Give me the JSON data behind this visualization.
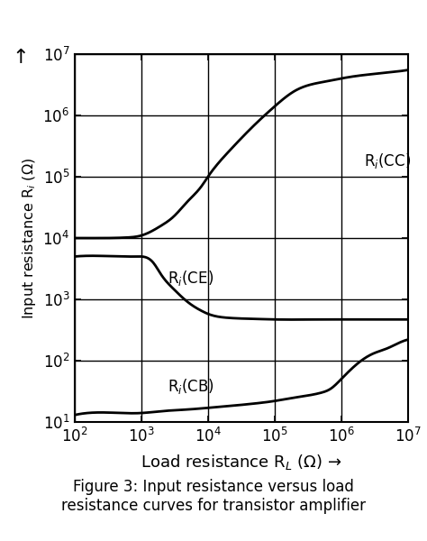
{
  "title": "Figure 3: Input resistance versus load\nresistance curves for transistor amplifier",
  "xlabel": "Load resistance R$_L$ (Ω) →",
  "ylabel": "Input resistance R$_i$ (Ω)",
  "xlim_log": [
    2,
    7
  ],
  "ylim_log": [
    1,
    7
  ],
  "background_color": "#ffffff",
  "curve_color": "#000000",
  "linewidth": 2.0,
  "CC_label": "R$_i$(CC)",
  "CE_label": "R$_i$(CE)",
  "CB_label": "R$_i$(CB)",
  "CC_x": [
    100,
    300,
    600,
    1000,
    2000,
    3000,
    5000,
    8000,
    10000,
    20000,
    50000,
    100000,
    200000,
    400000,
    700000,
    1000000,
    2000000,
    5000000,
    10000000
  ],
  "CC_y": [
    10000,
    10000,
    10200,
    11000,
    16000,
    22000,
    40000,
    70000,
    100000,
    250000,
    700000,
    1400000,
    2500000,
    3300000,
    3700000,
    4000000,
    4500000,
    5000000,
    5500000
  ],
  "CE_x": [
    100,
    500,
    800,
    1000,
    1500,
    2000,
    3000,
    5000,
    8000,
    10000,
    20000,
    50000,
    100000,
    500000,
    1000000,
    10000000
  ],
  "CE_y": [
    5000,
    5000,
    5000,
    5000,
    4000,
    2500,
    1500,
    900,
    650,
    580,
    500,
    480,
    470,
    470,
    470,
    470
  ],
  "CB_x": [
    100,
    500,
    1000,
    2000,
    5000,
    10000,
    50000,
    100000,
    200000,
    500000,
    700000,
    1000000,
    2000000,
    3000000,
    5000000,
    7000000,
    10000000
  ],
  "CB_y": [
    13,
    14,
    14,
    15,
    16,
    17,
    20,
    22,
    25,
    30,
    35,
    50,
    100,
    130,
    160,
    190,
    220
  ]
}
